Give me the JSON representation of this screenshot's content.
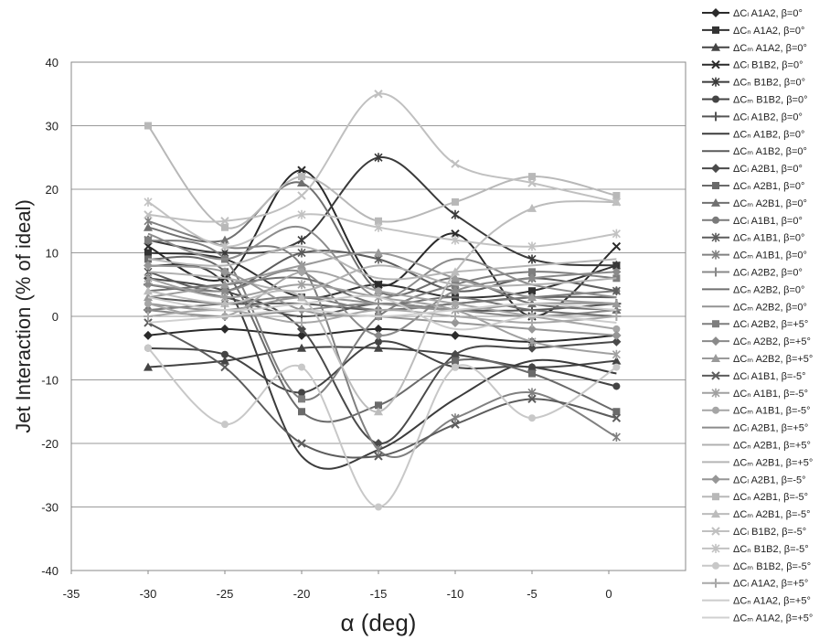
{
  "chart_data": {
    "type": "line",
    "title": "",
    "xlabel": "α (deg)",
    "ylabel": "Jet Interaction (% of ideal)",
    "xlim": [
      -35,
      5
    ],
    "ylim": [
      -40,
      40
    ],
    "xticks": [
      -35,
      -30,
      -25,
      -20,
      -15,
      -10,
      -5,
      0
    ],
    "yticks": [
      -40,
      -30,
      -20,
      -10,
      0,
      10,
      20,
      30,
      40
    ],
    "grid": "horizontal",
    "legend_position": "right",
    "x": [
      -30,
      -25,
      -20,
      -15,
      -10,
      -5,
      0.5
    ],
    "series": [
      {
        "name": "ΔCₗ A1A2, β=0°",
        "color": "#2b2b2b",
        "marker": "diamond",
        "values": [
          -3,
          -2,
          -3,
          -2,
          -3,
          -4,
          -3
        ]
      },
      {
        "name": "ΔCₙ A1A2, β=0°",
        "color": "#333333",
        "marker": "square",
        "values": [
          10,
          9,
          3,
          5,
          3,
          4,
          8
        ]
      },
      {
        "name": "ΔCₘ A1A2, β=0°",
        "color": "#444444",
        "marker": "triangle",
        "values": [
          -8,
          -7,
          -5,
          -5,
          -6,
          -8,
          -7
        ]
      },
      {
        "name": "ΔCₗ B1B2, β=0°",
        "color": "#2a2a2a",
        "marker": "x",
        "values": [
          11,
          6,
          23,
          5,
          13,
          0,
          11
        ]
      },
      {
        "name": "ΔCₙ B1B2, β=0°",
        "color": "#3a3a3a",
        "marker": "star",
        "values": [
          12,
          10,
          12,
          25,
          16,
          9,
          8
        ]
      },
      {
        "name": "ΔCₘ B1B2, β=0°",
        "color": "#444444",
        "marker": "circle",
        "values": [
          -5,
          -6,
          -12,
          -4,
          -8,
          -8,
          -11
        ]
      },
      {
        "name": "ΔCₗ A1B2, β=0°",
        "color": "#555555",
        "marker": "plus",
        "values": [
          5,
          3,
          0,
          2,
          1,
          1,
          2
        ]
      },
      {
        "name": "ΔCₙ A1B2, β=0°",
        "color": "#3c3c3c",
        "marker": "none",
        "values": [
          8,
          5,
          -22,
          -21,
          -13,
          -7,
          -9
        ]
      },
      {
        "name": "ΔCₘ A1B2, β=0°",
        "color": "#5a5a5a",
        "marker": "none",
        "values": [
          3,
          2,
          2,
          1,
          2,
          3,
          3
        ]
      },
      {
        "name": "ΔCₗ A2B1, β=0°",
        "color": "#4a4a4a",
        "marker": "diamond",
        "values": [
          6,
          4,
          -2,
          -20,
          -6,
          -5,
          -4
        ]
      },
      {
        "name": "ΔCₙ A2B1, β=0°",
        "color": "#6a6a6a",
        "marker": "square",
        "values": [
          9,
          7,
          -15,
          -14,
          -7,
          -9,
          -15
        ]
      },
      {
        "name": "ΔCₘ A2B1, β=0°",
        "color": "#707070",
        "marker": "triangle",
        "values": [
          14,
          12,
          21,
          4,
          6,
          2,
          1
        ]
      },
      {
        "name": "ΔCₗ A1B1, β=0°",
        "color": "#7a7a7a",
        "marker": "circle",
        "values": [
          1,
          2,
          3,
          1,
          2,
          3,
          4
        ]
      },
      {
        "name": "ΔCₙ A1B1, β=0°",
        "color": "#5d5d5d",
        "marker": "star",
        "values": [
          7,
          4,
          10,
          9,
          4,
          6,
          4
        ]
      },
      {
        "name": "ΔCₘ A1B1, β=0°",
        "color": "#808080",
        "marker": "star",
        "values": [
          15,
          11,
          8,
          -21,
          -16,
          -12,
          -19
        ]
      },
      {
        "name": "ΔCₗ A2B2, β=0°",
        "color": "#888888",
        "marker": "plus",
        "values": [
          1,
          0,
          1,
          2,
          1,
          0,
          1
        ]
      },
      {
        "name": "ΔCₙ A2B2, β=0°",
        "color": "#707070",
        "marker": "none",
        "values": [
          4,
          5,
          6,
          2,
          3,
          1,
          0
        ]
      },
      {
        "name": "ΔCₘ A2B2, β=0°",
        "color": "#939393",
        "marker": "none",
        "values": [
          2,
          1,
          3,
          2,
          1,
          2,
          2
        ]
      },
      {
        "name": "ΔCₗ A2B2, β=+5°",
        "color": "#7e7e7e",
        "marker": "square",
        "values": [
          12,
          9,
          -13,
          0,
          5,
          7,
          6
        ]
      },
      {
        "name": "ΔCₙ A2B2, β=+5°",
        "color": "#8a8a8a",
        "marker": "diamond",
        "values": [
          5,
          4,
          7,
          -3,
          4,
          6,
          7
        ]
      },
      {
        "name": "ΔCₘ A2B2, β=+5°",
        "color": "#9a9a9a",
        "marker": "triangle",
        "values": [
          3,
          5,
          8,
          10,
          6,
          3,
          2
        ]
      },
      {
        "name": "ΔCₗ A1B1, β=-5°",
        "color": "#5c5c5c",
        "marker": "x",
        "values": [
          -1,
          -8,
          -20,
          -22,
          -17,
          -13,
          -16
        ]
      },
      {
        "name": "ΔCₙ A1B1, β=-5°",
        "color": "#a0a0a0",
        "marker": "star",
        "values": [
          6,
          3,
          5,
          3,
          1,
          -4,
          -6
        ]
      },
      {
        "name": "ΔCₘ A1B1, β=-5°",
        "color": "#a5a5a5",
        "marker": "circle",
        "values": [
          2,
          0,
          7,
          4,
          2,
          0,
          -2
        ]
      },
      {
        "name": "ΔCₗ A2B1, β=+5°",
        "color": "#8c8c8c",
        "marker": "none",
        "values": [
          13,
          9,
          14,
          3,
          9,
          5,
          3
        ]
      },
      {
        "name": "ΔCₙ A2B1, β=+5°",
        "color": "#b0b0b0",
        "marker": "none",
        "values": [
          7,
          6,
          4,
          8,
          5,
          5,
          6
        ]
      },
      {
        "name": "ΔCₘ A2B1, β=+5°",
        "color": "#b5b5b5",
        "marker": "none",
        "values": [
          9,
          8,
          11,
          6,
          7,
          8,
          9
        ]
      },
      {
        "name": "ΔCₗ A2B1, β=-5°",
        "color": "#969696",
        "marker": "diamond",
        "values": [
          8,
          7,
          1,
          0,
          -1,
          -2,
          -3
        ]
      },
      {
        "name": "ΔCₙ A2B1, β=-5°",
        "color": "#b8b8b8",
        "marker": "square",
        "values": [
          30,
          14,
          22,
          15,
          18,
          22,
          19
        ]
      },
      {
        "name": "ΔCₘ A2B1, β=-5°",
        "color": "#bcbcbc",
        "marker": "triangle",
        "values": [
          4,
          2,
          3,
          -15,
          7,
          17,
          18
        ]
      },
      {
        "name": "ΔCₗ B1B2, β=-5°",
        "color": "#c0c0c0",
        "marker": "x",
        "values": [
          16,
          15,
          19,
          35,
          24,
          21,
          18
        ]
      },
      {
        "name": "ΔCₙ B1B2, β=-5°",
        "color": "#c2c2c2",
        "marker": "star",
        "values": [
          18,
          11,
          16,
          14,
          12,
          11,
          13
        ]
      },
      {
        "name": "ΔCₘ B1B2, β=-5°",
        "color": "#c8c8c8",
        "marker": "circle",
        "values": [
          -5,
          -17,
          -8,
          -30,
          -8,
          -16,
          -8
        ]
      },
      {
        "name": "ΔCₗ A1A2, β=+5°",
        "color": "#a8a8a8",
        "marker": "plus",
        "values": [
          0,
          1,
          -1,
          1,
          0,
          -1,
          0
        ]
      },
      {
        "name": "ΔCₙ A1A2, β=+5°",
        "color": "#cccccc",
        "marker": "none",
        "values": [
          3,
          1,
          2,
          3,
          -2,
          0,
          -1
        ]
      },
      {
        "name": "ΔCₘ A1A2, β=+5°",
        "color": "#d0d0d0",
        "marker": "none",
        "values": [
          -1,
          0,
          1,
          0,
          1,
          2,
          1
        ]
      }
    ]
  }
}
